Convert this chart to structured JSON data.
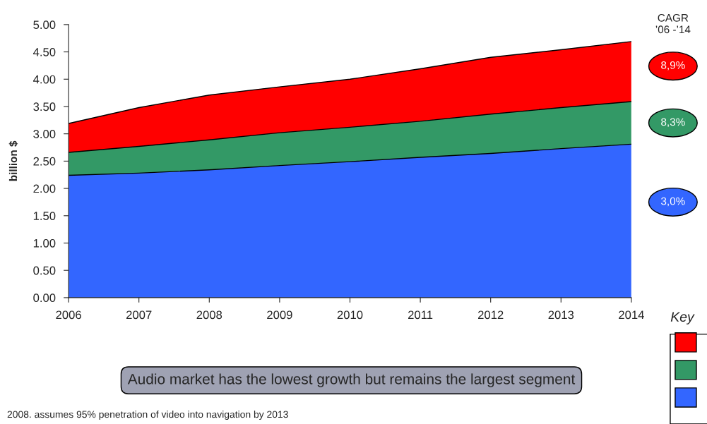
{
  "chart_data": {
    "type": "area",
    "stacked": true,
    "ylabel": "billion $",
    "grid": false,
    "x": [
      2006,
      2007,
      2008,
      2009,
      2010,
      2011,
      2012,
      2013,
      2014
    ],
    "xlim": [
      2006,
      2014
    ],
    "xticks": [
      2006,
      2007,
      2008,
      2009,
      2010,
      2011,
      2012,
      2013,
      2014
    ],
    "ylim": [
      0,
      5
    ],
    "yticks": [
      {
        "value": 0,
        "label": "0.00"
      },
      {
        "value": 0.5,
        "label": "0.50"
      },
      {
        "value": 1,
        "label": "1.00"
      },
      {
        "value": 1.5,
        "label": "1.50"
      },
      {
        "value": 2,
        "label": "2.00"
      },
      {
        "value": 2.5,
        "label": "2.50"
      },
      {
        "value": 3,
        "label": "3.00"
      },
      {
        "value": 3.5,
        "label": "3.50"
      },
      {
        "value": 4,
        "label": "4.00"
      },
      {
        "value": 4.5,
        "label": "4.50"
      },
      {
        "value": 5,
        "label": "5.00"
      }
    ],
    "series": [
      {
        "color": "#3366ff",
        "values": [
          2.24,
          2.28,
          2.34,
          2.42,
          2.49,
          2.57,
          2.64,
          2.73,
          2.81
        ]
      },
      {
        "color": "#339966",
        "values": [
          0.42,
          0.49,
          0.55,
          0.6,
          0.63,
          0.66,
          0.72,
          0.75,
          0.78
        ]
      },
      {
        "color": "#ff0000",
        "values": [
          0.53,
          0.71,
          0.82,
          0.84,
          0.88,
          0.96,
          1.04,
          1.06,
          1.1
        ]
      }
    ],
    "annotations": [
      "CAGR\n’06 -’14",
      "3,0%",
      "8,3%",
      "8,9%",
      "Audio market has the lowest growth but remains the largest segment",
      "2008. assumes 95% penetration of video into navigation by 2013",
      "Key"
    ]
  }
}
